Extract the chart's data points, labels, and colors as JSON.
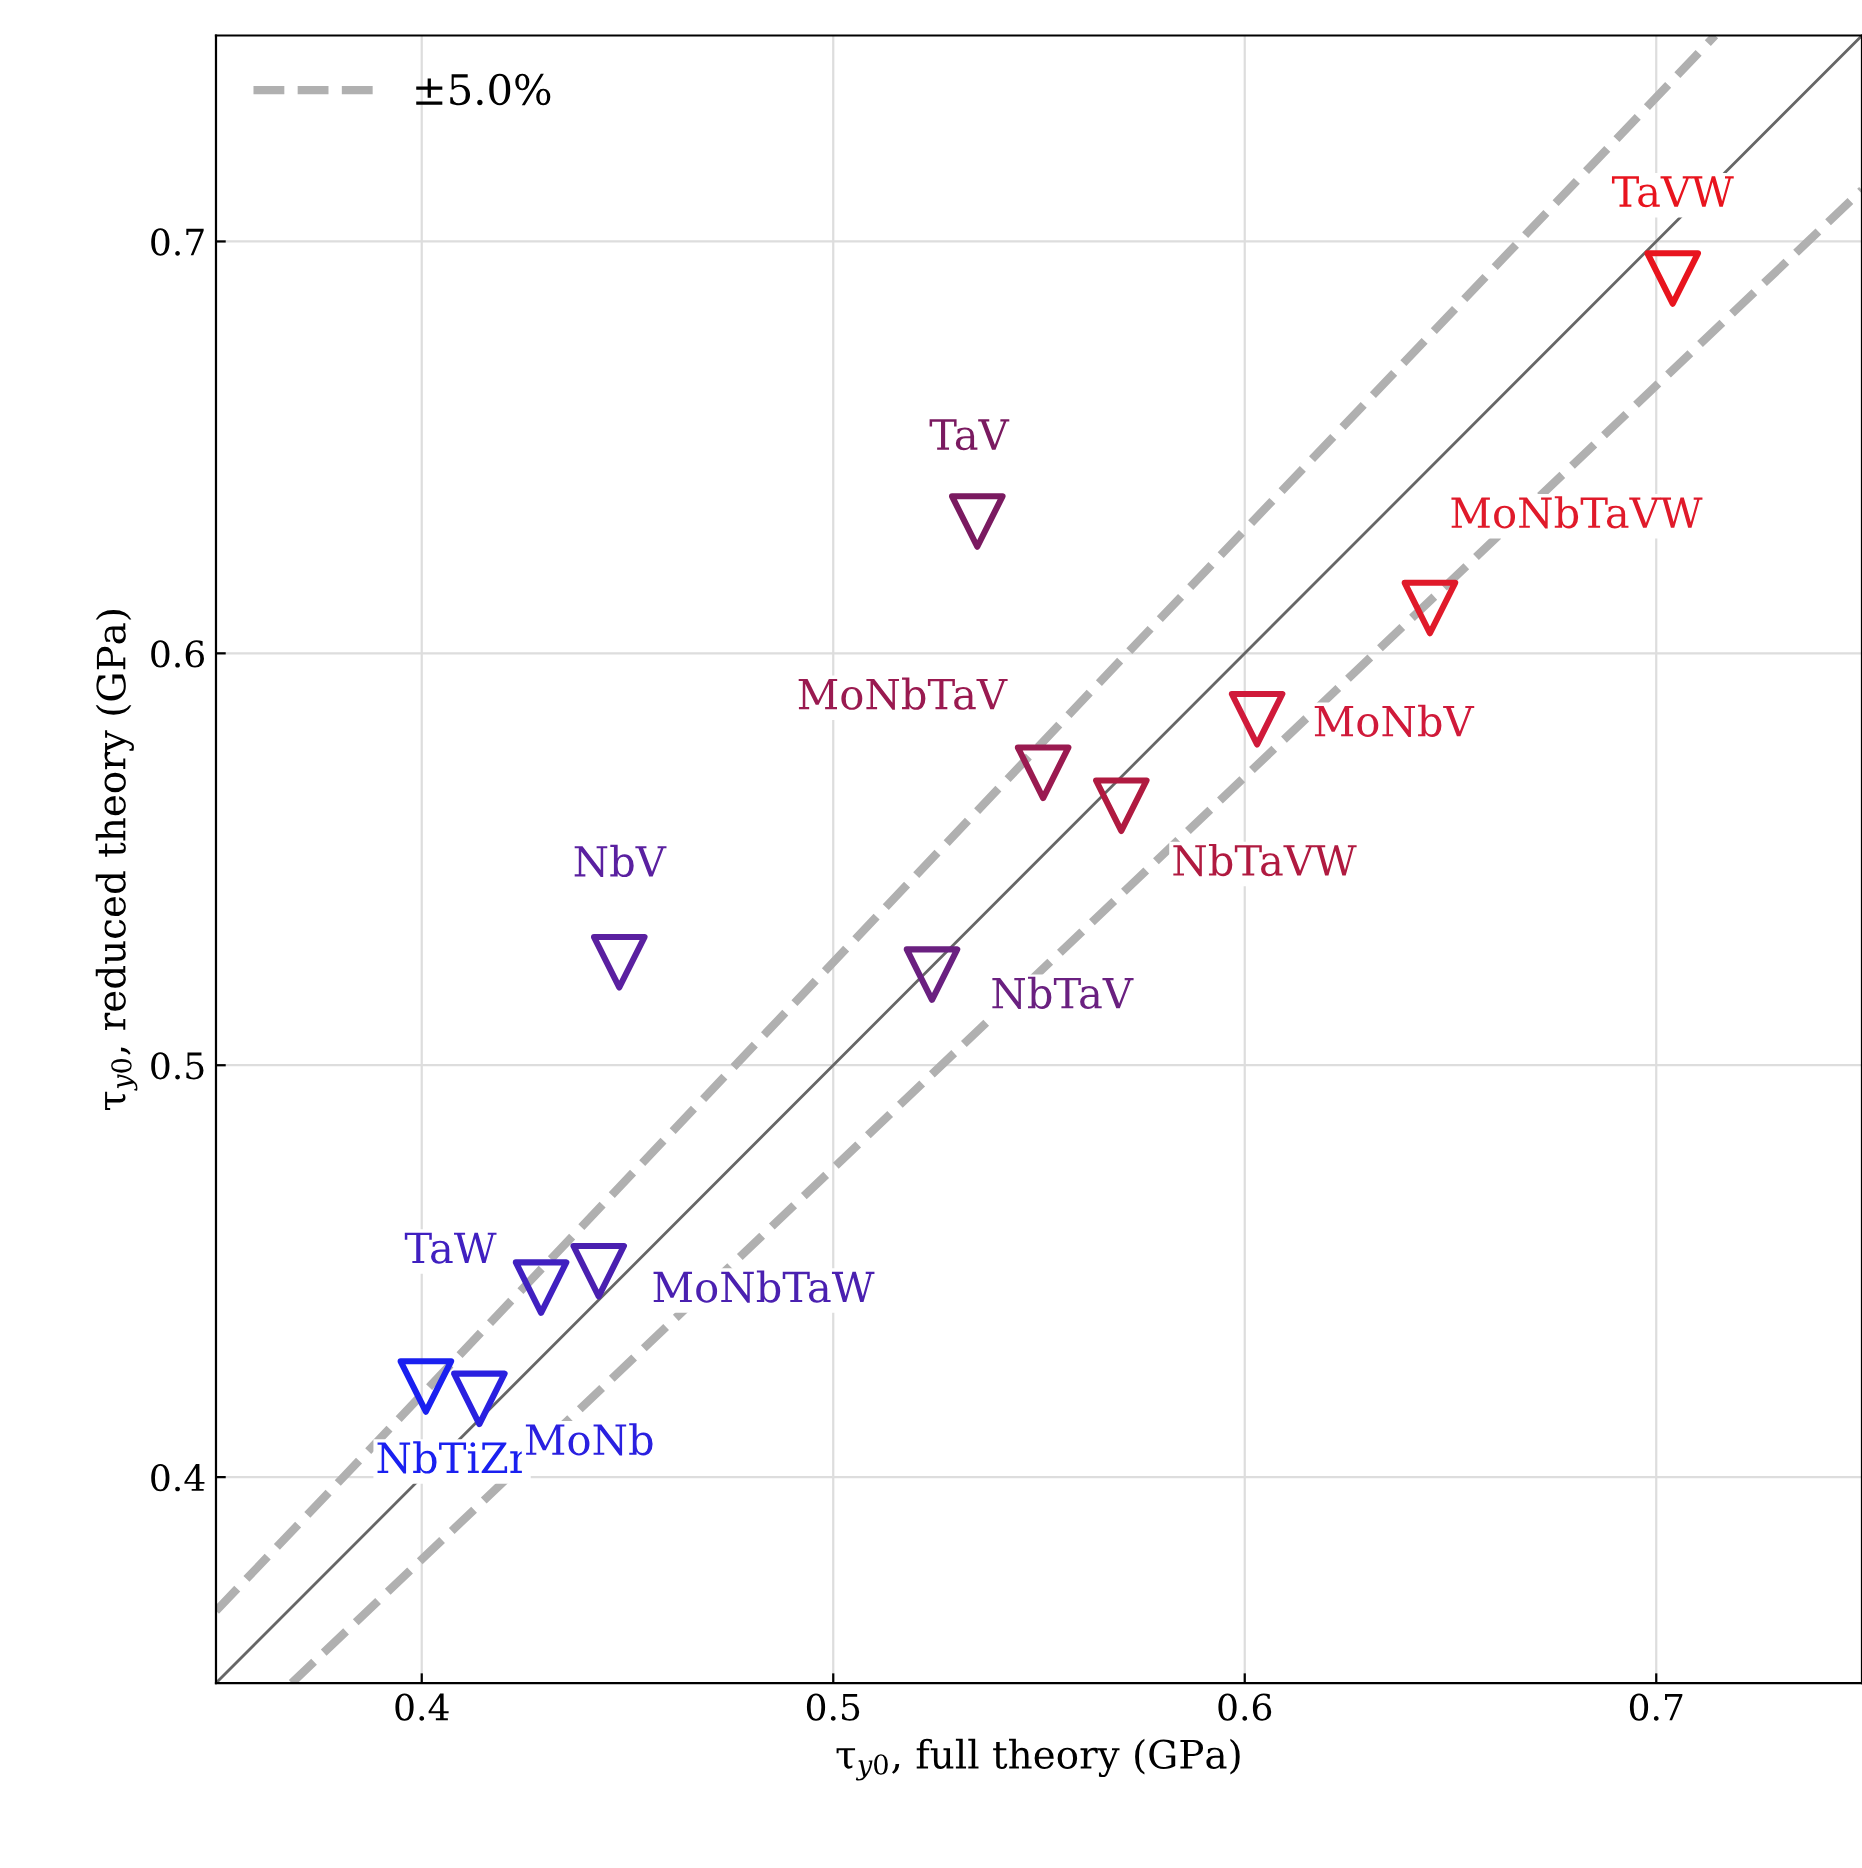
{
  "chart_data": {
    "type": "scatter",
    "xlabel": "τ$_{y0}$, full theory (GPa)",
    "ylabel": "τ$_{y0}$, reduced theory (GPa)",
    "xlim": [
      0.35,
      0.75
    ],
    "ylim": [
      0.35,
      0.75
    ],
    "xticks": [
      0.4,
      0.5,
      0.6,
      0.7
    ],
    "yticks": [
      0.4,
      0.5,
      0.6,
      0.7
    ],
    "grid": true,
    "legend": "top left",
    "series": [
      {
        "type": "line",
        "color": "#666666",
        "line_style": "solid",
        "x": [
          0.35,
          0.75
        ],
        "values": [
          0.35,
          0.75
        ]
      },
      {
        "type": "line",
        "name": "±5.0%",
        "color": "#b0b0b0",
        "line_style": "dashed",
        "x": [
          0.35,
          0.7143
        ],
        "values": [
          0.3675,
          0.75
        ]
      },
      {
        "type": "line",
        "color": "#b0b0b0",
        "line_style": "dashed",
        "x": [
          0.3684,
          0.75
        ],
        "values": [
          0.35,
          0.7125
        ]
      },
      {
        "marker": "triangle",
        "x": [
          0.704,
          0.645,
          0.603,
          0.57,
          0.551,
          0.535,
          0.448,
          0.524,
          0.429,
          0.443,
          0.401,
          0.414
        ],
        "values": [
          0.691,
          0.611,
          0.584,
          0.563,
          0.571,
          0.632,
          0.525,
          0.522,
          0.446,
          0.45,
          0.422,
          0.419
        ],
        "colors": [
          "#e8141e",
          "#e01a2a",
          "#d01a3a",
          "#b01a40",
          "#9a1a50",
          "#7a1a60",
          "#5a20a0",
          "#6a2080",
          "#4020c0",
          "#4a20b0",
          "#1a20f0",
          "#2a20e0"
        ]
      }
    ],
    "annotations": [
      {
        "text": "TaVW",
        "x": 0.704,
        "y": 0.691
      },
      {
        "text": "MoNbTaVW",
        "x": 0.645,
        "y": 0.611
      },
      {
        "text": "MoNbV",
        "x": 0.603,
        "y": 0.584
      },
      {
        "text": "NbTaVW",
        "x": 0.57,
        "y": 0.563
      },
      {
        "text": "MoNbTaV",
        "x": 0.551,
        "y": 0.571
      },
      {
        "text": "TaV",
        "x": 0.535,
        "y": 0.632
      },
      {
        "text": "NbV",
        "x": 0.448,
        "y": 0.525
      },
      {
        "text": "NbTaV",
        "x": 0.524,
        "y": 0.522
      },
      {
        "text": "TaW",
        "x": 0.429,
        "y": 0.446
      },
      {
        "text": "MoNbTaW",
        "x": 0.443,
        "y": 0.45
      },
      {
        "text": "NbTiZr",
        "x": 0.401,
        "y": 0.422
      },
      {
        "text": "MoNb",
        "x": 0.414,
        "y": 0.419
      }
    ]
  }
}
